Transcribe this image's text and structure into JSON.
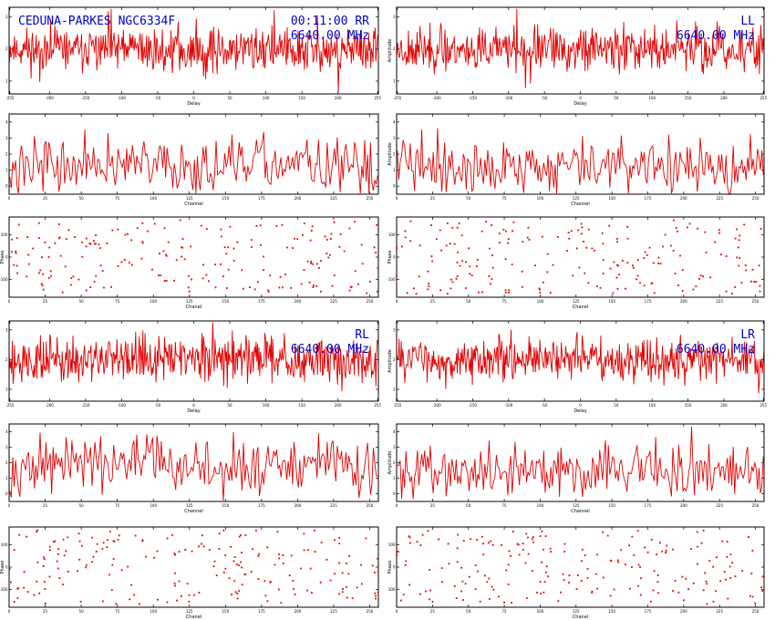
{
  "overlay": {
    "baseline_source": "CEDUNA-PARKES NGC6334F",
    "time": "00:11:00",
    "frequency": "6640.00 MHz"
  },
  "colors": {
    "trace": "#e00000",
    "overlay_text": "#0000cc",
    "axes": "#000000"
  },
  "chart_data": [
    {
      "id": "rr-delay",
      "type": "line",
      "pol": "RR",
      "xlabel": "Delay",
      "ylabel": "",
      "x_ticks": [
        -255,
        -200,
        -150,
        -100,
        -50,
        0,
        50,
        100,
        150,
        200,
        255
      ],
      "x_tick_labels": [
        "-255",
        "-200",
        "-150",
        "-100",
        "-50",
        "0",
        "50",
        "100",
        "150",
        "200",
        "255"
      ],
      "xlim": [
        -256,
        256
      ],
      "y_ticks": [
        1,
        2,
        3
      ],
      "ylim": [
        0.6,
        3.3
      ],
      "npoints": 512,
      "base": 2.0,
      "amp": 0.42,
      "seed": 11
    },
    {
      "id": "ll-delay",
      "type": "line",
      "pol": "LL",
      "xlabel": "Delay",
      "ylabel": "Amplitude",
      "x_ticks": [
        -255,
        -200,
        -150,
        -100,
        -50,
        0,
        50,
        100,
        150,
        200,
        255
      ],
      "x_tick_labels": [
        "-255",
        "-200",
        "-150",
        "-100",
        "-50",
        "0",
        "50",
        "100",
        "150",
        "200",
        "255"
      ],
      "xlim": [
        -256,
        256
      ],
      "y_ticks": [
        1,
        2,
        3
      ],
      "ylim": [
        0.6,
        3.3
      ],
      "npoints": 512,
      "base": 2.0,
      "amp": 0.42,
      "seed": 23
    },
    {
      "id": "rr-channel",
      "type": "line",
      "pol": "RR",
      "xlabel": "Channel",
      "ylabel": "",
      "x_ticks": [
        0,
        25,
        50,
        75,
        100,
        125,
        150,
        175,
        200,
        225,
        250
      ],
      "x_tick_labels": [
        "0",
        "25",
        "50",
        "75",
        "100",
        "125",
        "150",
        "175",
        "200",
        "225",
        "250"
      ],
      "xlim": [
        0,
        256
      ],
      "y_ticks": [
        0,
        1,
        2,
        3,
        4
      ],
      "ylim": [
        -0.5,
        4.5
      ],
      "npoints": 256,
      "base": 1.3,
      "amp": 1.0,
      "seed": 37
    },
    {
      "id": "ll-channel",
      "type": "line",
      "pol": "LL",
      "xlabel": "Channel",
      "ylabel": "Amplitude",
      "x_ticks": [
        0,
        25,
        50,
        75,
        100,
        125,
        150,
        175,
        200,
        225,
        250
      ],
      "x_tick_labels": [
        "0",
        "25",
        "50",
        "75",
        "100",
        "125",
        "150",
        "175",
        "200",
        "225",
        "250"
      ],
      "xlim": [
        0,
        256
      ],
      "y_ticks": [
        0,
        1,
        2,
        3,
        4
      ],
      "ylim": [
        -0.5,
        4.5
      ],
      "npoints": 256,
      "base": 1.2,
      "amp": 1.0,
      "seed": 41
    },
    {
      "id": "rr-phase",
      "type": "scatter",
      "pol": "RR",
      "xlabel": "Chanel",
      "ylabel": "Phase",
      "x_ticks": [
        0,
        25,
        50,
        75,
        100,
        125,
        150,
        175,
        200,
        225,
        250
      ],
      "x_tick_labels": [
        "0",
        "25",
        "50",
        "75",
        "100",
        "125",
        "150",
        "175",
        "200",
        "225",
        "250"
      ],
      "xlim": [
        0,
        256
      ],
      "y_ticks": [
        -100,
        0,
        100
      ],
      "ylim": [
        -180,
        180
      ],
      "npoints": 200,
      "seed": 53
    },
    {
      "id": "ll-phase",
      "type": "scatter",
      "pol": "LL",
      "xlabel": "Chanel",
      "ylabel": "Phase",
      "x_ticks": [
        0,
        25,
        50,
        75,
        100,
        125,
        150,
        175,
        200,
        225,
        250
      ],
      "x_tick_labels": [
        "0",
        "25",
        "50",
        "75",
        "100",
        "125",
        "150",
        "175",
        "200",
        "225",
        "250"
      ],
      "xlim": [
        0,
        256
      ],
      "y_ticks": [
        -100,
        0,
        100
      ],
      "ylim": [
        -180,
        180
      ],
      "npoints": 200,
      "seed": 67
    },
    {
      "id": "rl-delay",
      "type": "line",
      "pol": "RL",
      "xlabel": "Delay",
      "ylabel": "",
      "x_ticks": [
        -255,
        -200,
        -150,
        -100,
        -50,
        0,
        50,
        100,
        150,
        200,
        255
      ],
      "x_tick_labels": [
        "-255",
        "-200",
        "-150",
        "-100",
        "-50",
        "0",
        "50",
        "100",
        "150",
        "200",
        "255"
      ],
      "xlim": [
        -256,
        256
      ],
      "y_ticks": [
        1,
        2,
        3
      ],
      "ylim": [
        0.6,
        3.3
      ],
      "npoints": 512,
      "base": 2.0,
      "amp": 0.5,
      "seed": 79
    },
    {
      "id": "lr-delay",
      "type": "line",
      "pol": "LR",
      "xlabel": "Delay",
      "ylabel": "Amplitude",
      "x_ticks": [
        -255,
        -200,
        -150,
        -100,
        -50,
        0,
        50,
        100,
        150,
        200,
        255
      ],
      "x_tick_labels": [
        "-255",
        "-200",
        "-150",
        "-100",
        "-50",
        "0",
        "50",
        "100",
        "150",
        "200",
        "255"
      ],
      "xlim": [
        -256,
        256
      ],
      "y_ticks": [
        1,
        2,
        3
      ],
      "ylim": [
        0.6,
        3.3
      ],
      "npoints": 512,
      "base": 2.0,
      "amp": 0.42,
      "seed": 83
    },
    {
      "id": "rl-channel",
      "type": "line",
      "pol": "RL",
      "xlabel": "Channel",
      "ylabel": "",
      "x_ticks": [
        0,
        25,
        50,
        75,
        100,
        125,
        150,
        175,
        200,
        225,
        250
      ],
      "x_tick_labels": [
        "0",
        "25",
        "50",
        "75",
        "100",
        "125",
        "150",
        "175",
        "200",
        "225",
        "250"
      ],
      "xlim": [
        0,
        256
      ],
      "y_ticks": [
        0,
        1,
        2,
        3,
        4
      ],
      "ylim": [
        -0.5,
        4.5
      ],
      "npoints": 256,
      "base": 1.8,
      "amp": 1.1,
      "seed": 97
    },
    {
      "id": "lr-channel",
      "type": "line",
      "pol": "LR",
      "xlabel": "Channel",
      "ylabel": "Amplitude",
      "x_ticks": [
        0,
        25,
        50,
        75,
        100,
        125,
        150,
        175,
        200,
        225,
        250
      ],
      "x_tick_labels": [
        "0",
        "25",
        "50",
        "75",
        "100",
        "125",
        "150",
        "175",
        "200",
        "225",
        "250"
      ],
      "xlim": [
        0,
        256
      ],
      "y_ticks": [
        0,
        1,
        2,
        3,
        4
      ],
      "ylim": [
        -0.5,
        4.5
      ],
      "npoints": 256,
      "base": 1.5,
      "amp": 1.0,
      "seed": 101
    },
    {
      "id": "rl-phase",
      "type": "scatter",
      "pol": "RL",
      "xlabel": "Chanel",
      "ylabel": "Phase",
      "x_ticks": [
        0,
        25,
        50,
        75,
        100,
        125,
        150,
        175,
        200,
        225,
        250
      ],
      "x_tick_labels": [
        "0",
        "25",
        "50",
        "75",
        "100",
        "125",
        "150",
        "175",
        "200",
        "225",
        "250"
      ],
      "xlim": [
        0,
        256
      ],
      "y_ticks": [
        -100,
        0,
        100
      ],
      "ylim": [
        -180,
        180
      ],
      "npoints": 200,
      "seed": 113
    },
    {
      "id": "lr-phase",
      "type": "scatter",
      "pol": "LR",
      "xlabel": "Chanel",
      "ylabel": "Phase",
      "x_ticks": [
        0,
        25,
        50,
        75,
        100,
        125,
        150,
        175,
        200,
        225,
        250
      ],
      "x_tick_labels": [
        "0",
        "25",
        "50",
        "75",
        "100",
        "125",
        "150",
        "175",
        "200",
        "225",
        "250"
      ],
      "xlim": [
        0,
        256
      ],
      "y_ticks": [
        -100,
        0,
        100
      ],
      "ylim": [
        -180,
        180
      ],
      "npoints": 200,
      "seed": 127
    }
  ]
}
